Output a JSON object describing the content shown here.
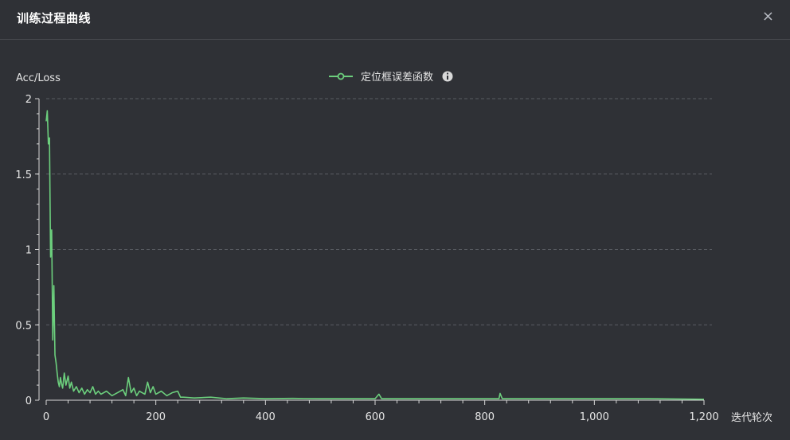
{
  "dialog": {
    "title": "训练过程曲线",
    "close_label": "×"
  },
  "colors": {
    "background": "#2f3136",
    "series": "#6ccf7d",
    "grid": "#5a5d63",
    "axis": "#d8d8d8",
    "text": "#e6e6e6"
  },
  "chart_data": {
    "type": "line",
    "ylabel": "Acc/Loss",
    "xlabel": "迭代轮次",
    "xlim": [
      0,
      1200
    ],
    "ylim": [
      0,
      2
    ],
    "xticks": [
      0,
      200,
      400,
      600,
      800,
      1000,
      1200
    ],
    "xtick_labels": [
      "0",
      "200",
      "400",
      "600",
      "800",
      "1,000",
      "1,200"
    ],
    "yticks": [
      0,
      0.5,
      1,
      1.5,
      2
    ],
    "ytick_labels": [
      "0",
      "0.5",
      "1",
      "1.5",
      "2"
    ],
    "grid": "horizontal-dashed",
    "legend_position": "top-center",
    "series": [
      {
        "name": "定位框误差函数",
        "info_icon": "info-circle-icon",
        "points": [
          [
            0,
            1.85
          ],
          [
            2,
            1.92
          ],
          [
            4,
            1.7
          ],
          [
            6,
            1.74
          ],
          [
            8,
            0.95
          ],
          [
            10,
            1.13
          ],
          [
            12,
            0.4
          ],
          [
            14,
            0.76
          ],
          [
            16,
            0.3
          ],
          [
            18,
            0.25
          ],
          [
            20,
            0.18
          ],
          [
            22,
            0.12
          ],
          [
            24,
            0.09
          ],
          [
            26,
            0.15
          ],
          [
            28,
            0.11
          ],
          [
            30,
            0.08
          ],
          [
            33,
            0.18
          ],
          [
            36,
            0.1
          ],
          [
            40,
            0.16
          ],
          [
            43,
            0.08
          ],
          [
            46,
            0.12
          ],
          [
            50,
            0.06
          ],
          [
            55,
            0.09
          ],
          [
            60,
            0.05
          ],
          [
            65,
            0.08
          ],
          [
            70,
            0.04
          ],
          [
            75,
            0.07
          ],
          [
            80,
            0.05
          ],
          [
            85,
            0.09
          ],
          [
            90,
            0.04
          ],
          [
            95,
            0.06
          ],
          [
            100,
            0.04
          ],
          [
            110,
            0.06
          ],
          [
            120,
            0.03
          ],
          [
            130,
            0.05
          ],
          [
            140,
            0.07
          ],
          [
            145,
            0.03
          ],
          [
            150,
            0.15
          ],
          [
            155,
            0.05
          ],
          [
            160,
            0.08
          ],
          [
            165,
            0.03
          ],
          [
            170,
            0.06
          ],
          [
            180,
            0.04
          ],
          [
            185,
            0.12
          ],
          [
            190,
            0.05
          ],
          [
            195,
            0.09
          ],
          [
            200,
            0.04
          ],
          [
            210,
            0.06
          ],
          [
            220,
            0.03
          ],
          [
            230,
            0.05
          ],
          [
            240,
            0.06
          ],
          [
            245,
            0.02
          ],
          [
            250,
            0.02
          ],
          [
            270,
            0.015
          ],
          [
            300,
            0.02
          ],
          [
            330,
            0.01
          ],
          [
            360,
            0.015
          ],
          [
            400,
            0.01
          ],
          [
            450,
            0.012
          ],
          [
            500,
            0.01
          ],
          [
            550,
            0.01
          ],
          [
            600,
            0.01
          ],
          [
            607,
            0.04
          ],
          [
            612,
            0.01
          ],
          [
            650,
            0.01
          ],
          [
            700,
            0.01
          ],
          [
            750,
            0.01
          ],
          [
            800,
            0.01
          ],
          [
            826,
            0.01
          ],
          [
            828,
            0.045
          ],
          [
            832,
            0.01
          ],
          [
            900,
            0.01
          ],
          [
            950,
            0.01
          ],
          [
            1000,
            0.01
          ],
          [
            1050,
            0.01
          ],
          [
            1100,
            0.01
          ],
          [
            1150,
            0.008
          ],
          [
            1200,
            0.006
          ]
        ]
      }
    ]
  }
}
